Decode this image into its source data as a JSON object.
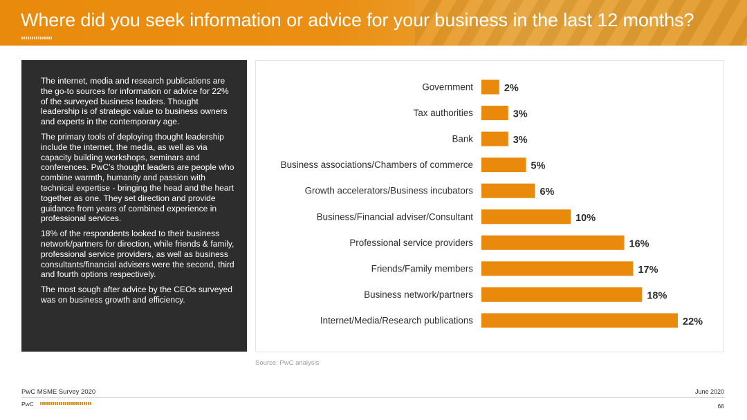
{
  "header": {
    "title": "Where did you seek information or advice for your business in the last 12 months?"
  },
  "panel": {
    "paragraphs": [
      "The internet, media and research publications are the go-to sources for information or advice for 22% of the surveyed business leaders. Thought leadership is of strategic value to business owners and experts in the contemporary age.",
      "The primary tools  of deploying thought leadership include the internet, the media, as well as via capacity building workshops, seminars and conferences. PwC’s thought leaders are people who combine warmth, humanity and passion with technical expertise - bringing the head and the heart together as one. They set direction and provide guidance from years of combined experience in professional services.",
      "18% of the respondents looked to their business network/partners for direction, while friends & family, professional service providers, as well as business consultants/financial advisers were the second, third and fourth options respectively.",
      "The most sough after advice by the CEOs surveyed was on business growth and efficiency."
    ]
  },
  "chart_data": {
    "type": "bar",
    "orientation": "horizontal",
    "title": "",
    "xlabel": "",
    "ylabel": "",
    "categories": [
      "Government",
      "Tax authorities",
      "Bank",
      "Business associations/Chambers of commerce",
      "Growth accelerators/Business incubators",
      "Business/Financial adviser/Consultant",
      "Professional service providers",
      "Friends/Family members",
      "Business network/partners",
      "Internet/Media/Research publications"
    ],
    "values": [
      2,
      3,
      3,
      5,
      6,
      10,
      16,
      17,
      18,
      22
    ],
    "value_labels": [
      "2%",
      "3%",
      "3%",
      "5%",
      "6%",
      "10%",
      "16%",
      "17%",
      "18%",
      "22%"
    ],
    "xlim": [
      0,
      22
    ],
    "grid": false,
    "bar_color": "#e98a0c"
  },
  "source": "Source: PwC analysis",
  "footer": {
    "survey": "PwC MSME Survey 2020",
    "date": "June 2020",
    "brand": "PwC",
    "page": "66"
  }
}
